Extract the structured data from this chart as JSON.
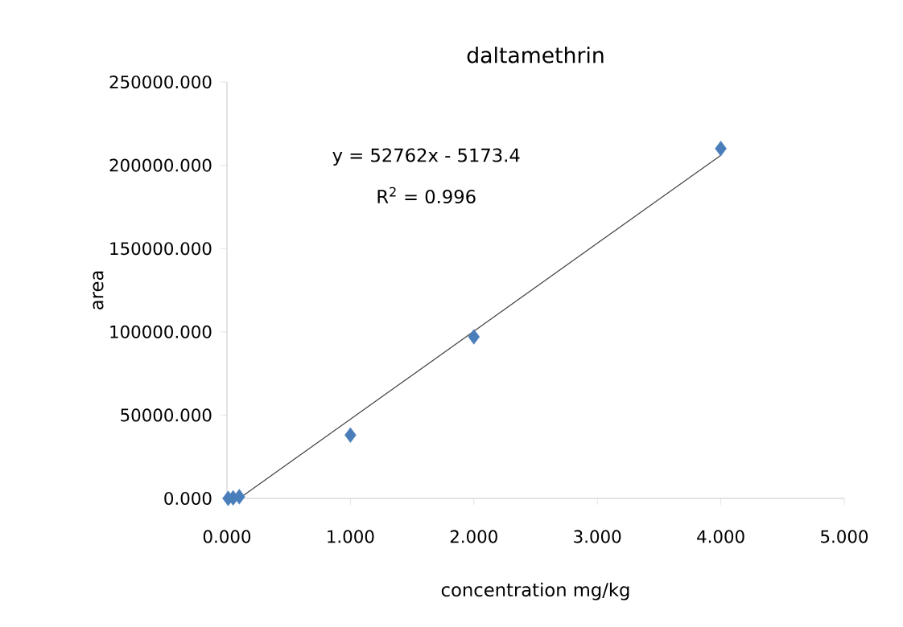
{
  "chart_data": {
    "type": "scatter",
    "title": "daltamethrin",
    "xlabel": "concentration mg/kg",
    "ylabel": "area",
    "xlim": [
      0,
      5
    ],
    "ylim": [
      0,
      250000
    ],
    "xticks": [
      {
        "value": 0,
        "label": "0.000"
      },
      {
        "value": 1,
        "label": "1.000"
      },
      {
        "value": 2,
        "label": "2.000"
      },
      {
        "value": 3,
        "label": "3.000"
      },
      {
        "value": 4,
        "label": "4.000"
      },
      {
        "value": 5,
        "label": "5.000"
      }
    ],
    "yticks": [
      {
        "value": 0,
        "label": "0.000"
      },
      {
        "value": 50000,
        "label": "50000.000"
      },
      {
        "value": 100000,
        "label": "100000.000"
      },
      {
        "value": 150000,
        "label": "150000.000"
      },
      {
        "value": 200000,
        "label": "200000.000"
      },
      {
        "value": 250000,
        "label": "250000.000"
      }
    ],
    "series": [
      {
        "color": "#4a7ebb",
        "marker": "diamond",
        "x": [
          0.01,
          0.05,
          0.1,
          1,
          2,
          4
        ],
        "values": [
          0,
          300,
          1000,
          38000,
          97000,
          210000
        ]
      },
      {
        "type": "line",
        "color": "#404040",
        "marker": "none",
        "line_style": "solid",
        "x": [
          0.1,
          4
        ],
        "values": [
          0,
          206000
        ]
      }
    ],
    "annotations": [
      "y = 52762x  - 5173.4",
      "R$^{2}$ = 0.996"
    ]
  }
}
